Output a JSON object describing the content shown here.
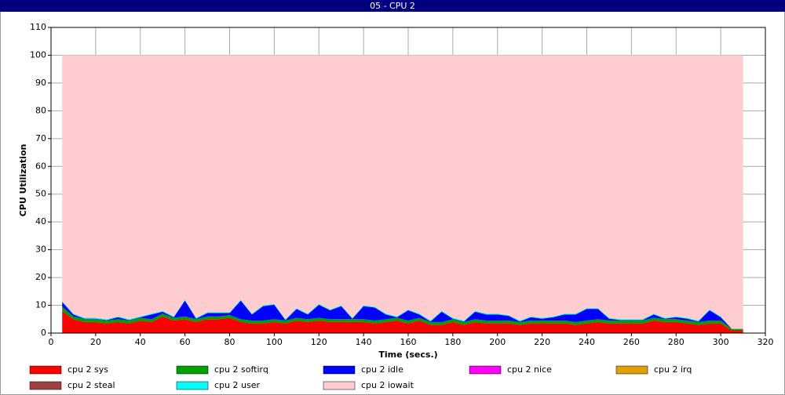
{
  "chart_data": {
    "type": "stacked_area",
    "title": "05 - CPU 2",
    "xlabel": "Time (secs.)",
    "ylabel": "CPU Utilization",
    "x": [
      5,
      10,
      15,
      20,
      25,
      30,
      35,
      40,
      45,
      50,
      55,
      60,
      65,
      70,
      75,
      80,
      85,
      90,
      95,
      100,
      105,
      110,
      115,
      120,
      125,
      130,
      135,
      140,
      145,
      150,
      155,
      160,
      165,
      170,
      175,
      180,
      185,
      190,
      195,
      200,
      205,
      210,
      215,
      220,
      225,
      230,
      235,
      240,
      245,
      250,
      255,
      260,
      265,
      270,
      275,
      280,
      285,
      290,
      295,
      300,
      305,
      310
    ],
    "xlim": [
      0,
      320
    ],
    "xticks": [
      0,
      20,
      40,
      60,
      80,
      100,
      120,
      140,
      160,
      180,
      200,
      220,
      240,
      260,
      280,
      300,
      320
    ],
    "ylim": [
      0,
      110
    ],
    "yticks": [
      0,
      10,
      20,
      30,
      40,
      50,
      60,
      70,
      80,
      90,
      100,
      110
    ],
    "grid": true,
    "legend": "bottom",
    "series": [
      {
        "name": "cpu 2 sys",
        "color": "#ff0000",
        "values": [
          8,
          5,
          4,
          4,
          3.5,
          4,
          3.5,
          4.5,
          4,
          6,
          4.5,
          5,
          4,
          5,
          5,
          5.5,
          4,
          3.5,
          3.5,
          4,
          3.5,
          4.5,
          4,
          4.5,
          4,
          4,
          4,
          4,
          3.5,
          4,
          4.5,
          3.5,
          4.5,
          3,
          3,
          4,
          3,
          4,
          3.5,
          3.5,
          3.5,
          3,
          3.5,
          3.5,
          3.5,
          3.5,
          3,
          3.5,
          4,
          3.5,
          3.5,
          3.5,
          3.5,
          4.5,
          4,
          4,
          3.5,
          3,
          3.5,
          3.5,
          1,
          1
        ]
      },
      {
        "name": "cpu 2 softirq",
        "color": "#00a000",
        "values": [
          1.5,
          1,
          1,
          1,
          1,
          1,
          1,
          1,
          1,
          1,
          1,
          1,
          1,
          1,
          1,
          1,
          1,
          1,
          1,
          1,
          1,
          1,
          1,
          1,
          1,
          1,
          1,
          1,
          1,
          1,
          1,
          1,
          1,
          1,
          1,
          1,
          1,
          1,
          1,
          1,
          1,
          1,
          1,
          1,
          1,
          1,
          1,
          1,
          1,
          1,
          1,
          1,
          1,
          1,
          1,
          1,
          1,
          1,
          1,
          1,
          0.5,
          0.5
        ]
      },
      {
        "name": "cpu 2 idle",
        "color": "#0000ff",
        "values": [
          1.7,
          0.7,
          0.2,
          0.2,
          0.2,
          0.7,
          0.2,
          0.2,
          1.7,
          0.7,
          0.2,
          5.7,
          0.2,
          1.2,
          1.2,
          0.7,
          6.7,
          2.2,
          5.2,
          5.2,
          0.2,
          3.2,
          1.7,
          4.7,
          3.2,
          4.7,
          0.2,
          4.7,
          4.7,
          1.7,
          0.2,
          3.7,
          1.2,
          0.2,
          3.7,
          0.2,
          0.2,
          2.7,
          2.2,
          2.2,
          1.7,
          0.2,
          1.2,
          0.7,
          1.2,
          2.2,
          2.7,
          4.2,
          3.7,
          0.7,
          0.2,
          0.2,
          0.2,
          1.2,
          0.2,
          0.7,
          0.7,
          0.2,
          3.7,
          1.2,
          0,
          0
        ]
      },
      {
        "name": "cpu 2 nice",
        "color": "#ff00ff",
        "values": [
          0,
          0,
          0,
          0,
          0,
          0,
          0,
          0,
          0,
          0,
          0,
          0,
          0,
          0,
          0,
          0,
          0,
          0,
          0,
          0,
          0,
          0,
          0,
          0,
          0,
          0,
          0,
          0,
          0,
          0,
          0,
          0,
          0,
          0,
          0,
          0,
          0,
          0,
          0,
          0,
          0,
          0,
          0,
          0,
          0,
          0,
          0,
          0,
          0,
          0,
          0,
          0,
          0,
          0,
          0,
          0,
          0,
          0,
          0,
          0,
          0,
          0
        ]
      },
      {
        "name": "cpu 2 irq",
        "color": "#e0a000",
        "values": [
          0,
          0,
          0,
          0,
          0,
          0,
          0,
          0,
          0,
          0,
          0,
          0,
          0,
          0,
          0,
          0,
          0,
          0,
          0,
          0,
          0,
          0,
          0,
          0,
          0,
          0,
          0,
          0,
          0,
          0,
          0,
          0,
          0,
          0,
          0,
          0,
          0,
          0,
          0,
          0,
          0,
          0,
          0,
          0,
          0,
          0,
          0,
          0,
          0,
          0,
          0,
          0,
          0,
          0,
          0,
          0,
          0,
          0,
          0,
          0,
          0,
          0
        ]
      },
      {
        "name": "cpu 2 steal",
        "color": "#a04040",
        "values": [
          0,
          0,
          0,
          0,
          0,
          0,
          0,
          0,
          0,
          0,
          0,
          0,
          0,
          0,
          0,
          0,
          0,
          0,
          0,
          0,
          0,
          0,
          0,
          0,
          0,
          0,
          0,
          0,
          0,
          0,
          0,
          0,
          0,
          0,
          0,
          0,
          0,
          0,
          0,
          0,
          0,
          0,
          0,
          0,
          0,
          0,
          0,
          0,
          0,
          0,
          0,
          0,
          0,
          0,
          0,
          0,
          0,
          0,
          0,
          0,
          0,
          0
        ]
      },
      {
        "name": "cpu 2 user",
        "color": "#00ffff",
        "values": [
          0.3,
          0.3,
          0.3,
          0.3,
          0.3,
          0.3,
          0.3,
          0.3,
          0.3,
          0.3,
          0.3,
          0.3,
          0.3,
          0.3,
          0.3,
          0.3,
          0.3,
          0.3,
          0.3,
          0.3,
          0.3,
          0.3,
          0.3,
          0.3,
          0.3,
          0.3,
          0.3,
          0.3,
          0.3,
          0.3,
          0.3,
          0.3,
          0.3,
          0.3,
          0.3,
          0.3,
          0.3,
          0.3,
          0.3,
          0.3,
          0.3,
          0.3,
          0.3,
          0.3,
          0.3,
          0.3,
          0.3,
          0.3,
          0.3,
          0.3,
          0.3,
          0.3,
          0.3,
          0.3,
          0.3,
          0.3,
          0.3,
          0.3,
          0.3,
          0.3,
          0,
          0
        ]
      },
      {
        "name": "cpu 2 iowait",
        "color": "#ffccd0",
        "values": [
          88.5,
          93,
          94.5,
          94.5,
          95,
          94,
          95,
          94,
          93,
          92,
          94,
          88,
          94.5,
          92.5,
          92.5,
          92.5,
          88,
          93,
          90,
          89.5,
          95,
          91,
          93,
          89.5,
          91.5,
          90,
          94.5,
          90,
          90.5,
          93,
          94,
          91.5,
          93,
          95.5,
          92,
          94.5,
          95.5,
          92,
          93,
          93,
          93.5,
          95.5,
          94,
          94.5,
          94,
          93,
          93,
          91,
          91,
          94.5,
          95,
          95,
          95,
          93,
          94.5,
          94,
          94.5,
          95.5,
          91.5,
          94,
          98.5,
          98.5
        ]
      }
    ]
  }
}
